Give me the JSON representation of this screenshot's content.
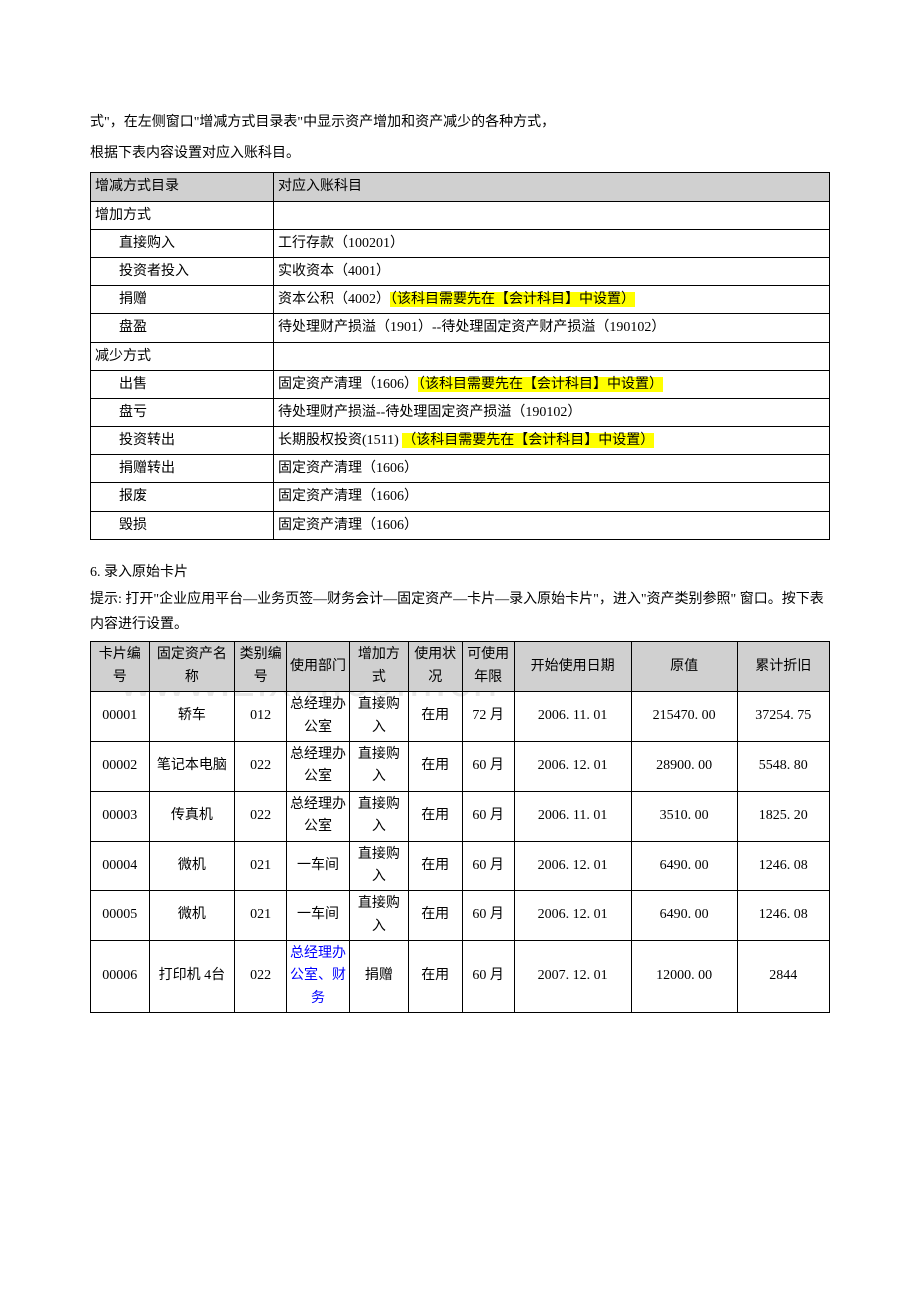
{
  "intro": {
    "line1": "式\"，在左侧窗口\"增减方式目录表\"中显示资产增加和资产减少的各种方式，",
    "line2": "根据下表内容设置对应入账科目。"
  },
  "table1": {
    "headers": [
      "增减方式目录",
      "对应入账科目"
    ],
    "rows": [
      {
        "col1": "增加方式",
        "col2": "",
        "indent": false
      },
      {
        "col1": "直接购入",
        "col2": "工行存款（100201）",
        "indent": true
      },
      {
        "col1": "投资者投入",
        "col2": "实收资本（4001）",
        "indent": true
      },
      {
        "col1": "捐赠",
        "col2_pre": "资本公积（4002）",
        "col2_hl": "（该科目需要先在【会计科目】中设置）",
        "indent": true,
        "has_highlight": true
      },
      {
        "col1": "盘盈",
        "col2": "待处理财产损溢（1901）--待处理固定资产财产损溢（190102）",
        "indent": true
      },
      {
        "col1": "减少方式",
        "col2": "",
        "indent": false
      },
      {
        "col1": "出售",
        "col2_pre": "固定资产清理（1606）",
        "col2_hl": "（该科目需要先在【会计科目】中设置）",
        "indent": true,
        "has_highlight": true
      },
      {
        "col1": "盘亏",
        "col2": "待处理财产损溢--待处理固定资产损溢（190102）",
        "indent": true
      },
      {
        "col1": "投资转出",
        "col2_pre": "长期股权投资(1511) ",
        "col2_hl": "（该科目需要先在【会计科目】中设置）",
        "indent": true,
        "has_highlight": true
      },
      {
        "col1": "捐赠转出",
        "col2": "固定资产清理（1606）",
        "indent": true
      },
      {
        "col1": "报废",
        "col2": "固定资产清理（1606）",
        "indent": true
      },
      {
        "col1": "毁损",
        "col2": "固定资产清理（1606）",
        "indent": true
      }
    ]
  },
  "section6": {
    "title": "6. 录入原始卡片",
    "tip": "提示: 打开\"企业应用平台—业务页签—财务会计—固定资产—卡片—录入原始卡片\"，进入\"资产类别参照\"  窗口。按下表内容进行设置。"
  },
  "table2": {
    "headers": [
      "卡片编号",
      "固定资产名称",
      "类别编号",
      "使用部门",
      "增加方式",
      "使用状况",
      "可使用年限",
      "开始使用日期",
      "原值",
      "累计折旧"
    ],
    "rows": [
      {
        "c1": "00001",
        "c2": "轿车",
        "c3": "012",
        "c4": "总经理办公室",
        "c5": "直接购入",
        "c6": "在用",
        "c7": "72 月",
        "c8": "2006. 11. 01",
        "c9": "215470. 00",
        "c10": "37254. 75"
      },
      {
        "c1": "00002",
        "c2": "笔记本电脑",
        "c3": "022",
        "c4": "总经理办公室",
        "c5": "直接购入",
        "c6": "在用",
        "c7": "60 月",
        "c8": "2006. 12. 01",
        "c9": "28900. 00",
        "c10": "5548. 80"
      },
      {
        "c1": "00003",
        "c2": "传真机",
        "c3": "022",
        "c4": "总经理办公室",
        "c5": "直接购入",
        "c6": "在用",
        "c7": "60 月",
        "c8": "2006. 11. 01",
        "c9": "3510. 00",
        "c10": "1825. 20"
      },
      {
        "c1": "00004",
        "c2": "微机",
        "c3": "021",
        "c4": "一车间",
        "c5": "直接购入",
        "c6": "在用",
        "c7": "60 月",
        "c8": "2006. 12. 01",
        "c9": "6490. 00",
        "c10": "1246. 08"
      },
      {
        "c1": "00005",
        "c2": "微机",
        "c3": "021",
        "c4": "一车间",
        "c5": "直接购入",
        "c6": "在用",
        "c7": "60 月",
        "c8": "2006. 12. 01",
        "c9": "6490. 00",
        "c10": "1246. 08"
      },
      {
        "c1": "00006",
        "c2": "打印机 4台",
        "c3": "022",
        "c4": "总经理办公室、财务",
        "c4_blue": true,
        "c5": "捐赠",
        "c6": "在用",
        "c7": "60 月",
        "c8": "2007. 12. 01",
        "c9": "12000. 00",
        "c10": "2844"
      }
    ]
  },
  "watermark": "www.zixin.com.cn"
}
